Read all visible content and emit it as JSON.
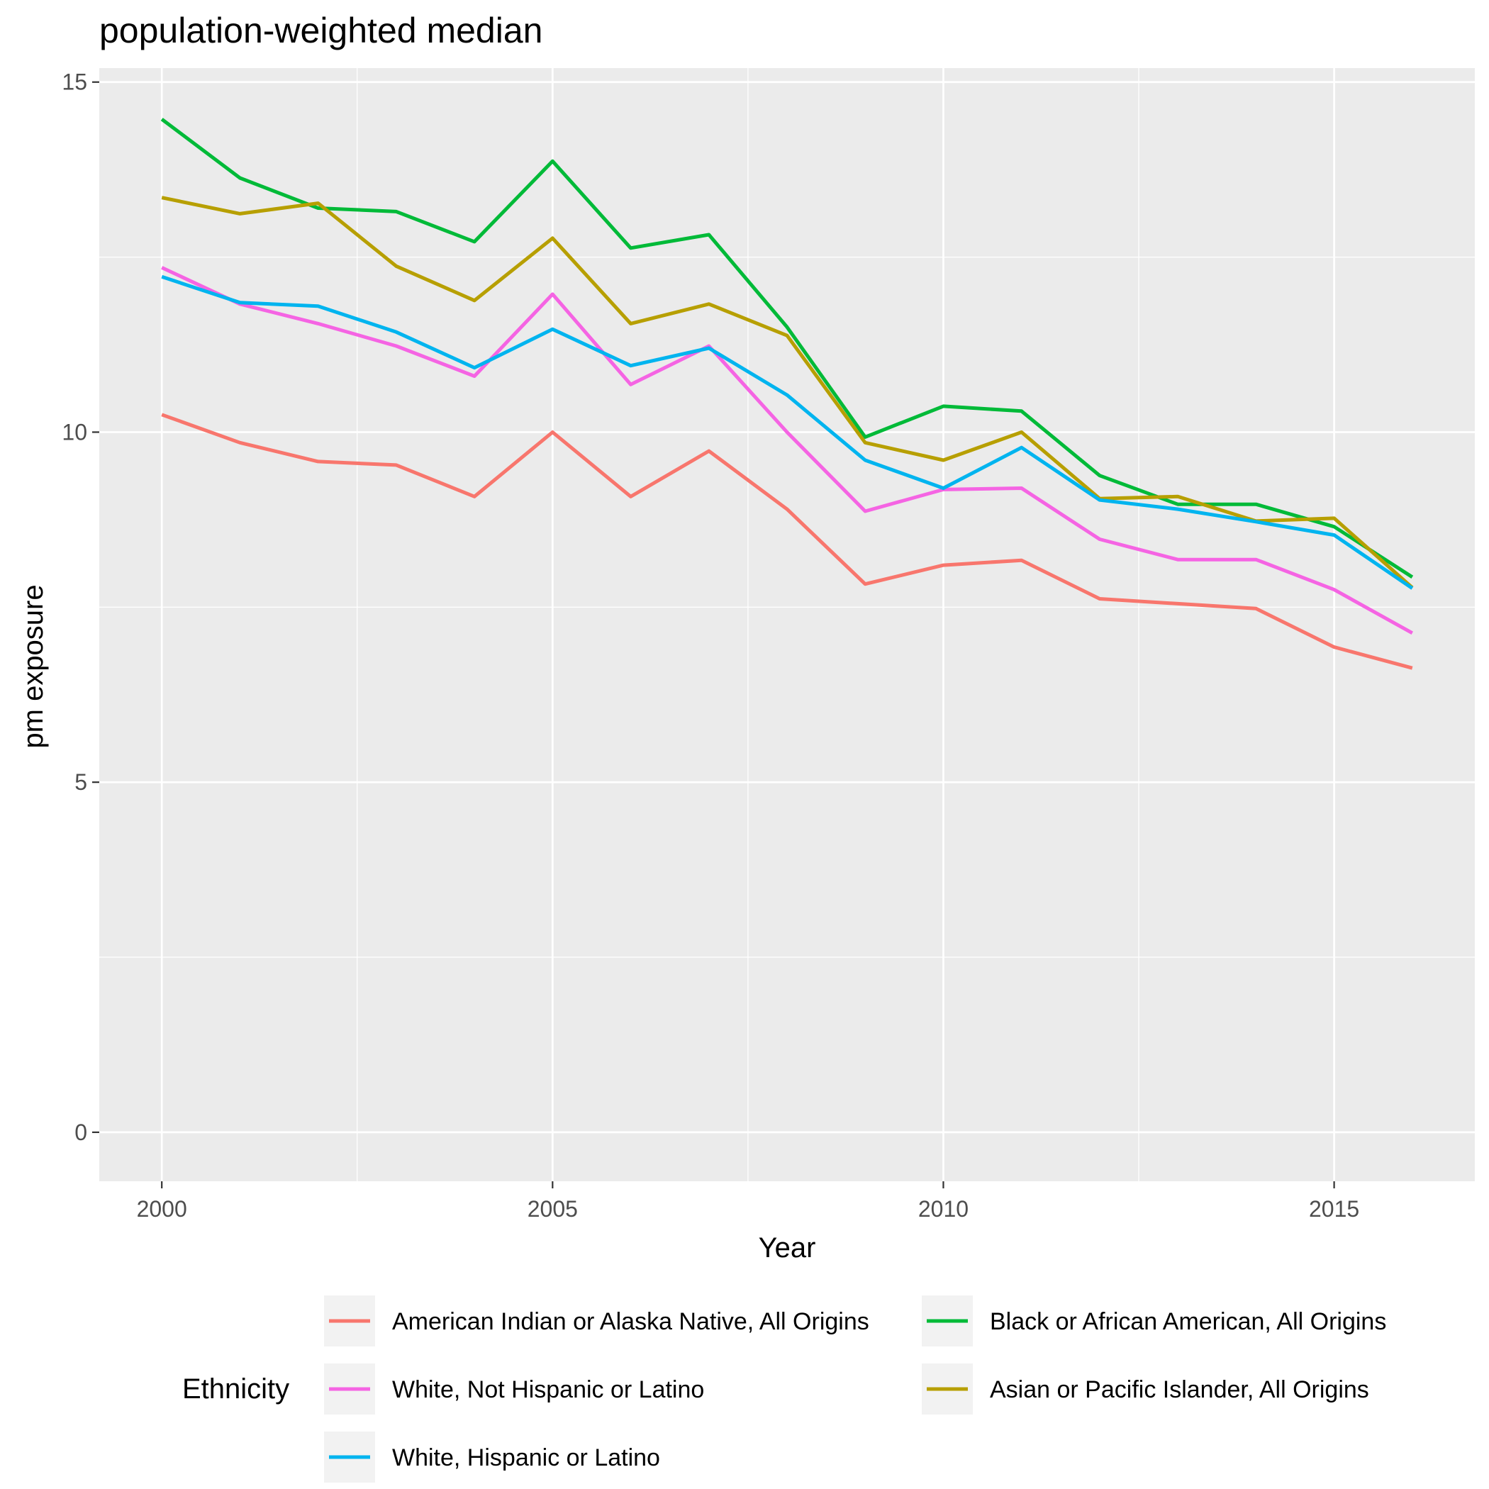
{
  "chart_data": {
    "type": "line",
    "title": "population-weighted median",
    "xlabel": "Year",
    "ylabel": "pm exposure",
    "xlim": [
      1999.2,
      2016.8
    ],
    "ylim": [
      -0.7,
      15.2
    ],
    "x_ticks": [
      2000,
      2005,
      2010,
      2015
    ],
    "y_ticks": [
      0,
      5,
      10,
      15
    ],
    "grid": true,
    "legend_title": "Ethnicity",
    "legend_position": "bottom",
    "x": [
      2000,
      2001,
      2002,
      2003,
      2004,
      2005,
      2006,
      2007,
      2008,
      2009,
      2010,
      2011,
      2012,
      2013,
      2014,
      2015,
      2016
    ],
    "series": [
      {
        "name": "American Indian or Alaska Native, All Origins",
        "color": "#F8766D",
        "values": [
          10.25,
          9.85,
          9.58,
          9.53,
          9.08,
          10.0,
          9.08,
          9.73,
          8.9,
          7.83,
          8.1,
          8.17,
          7.62,
          7.55,
          7.48,
          6.93,
          6.63
        ]
      },
      {
        "name": "Black or African American, All Origins",
        "color": "#00BA38",
        "values": [
          14.47,
          13.63,
          13.2,
          13.15,
          12.72,
          13.87,
          12.63,
          12.82,
          11.5,
          9.93,
          10.37,
          10.3,
          9.38,
          8.97,
          8.97,
          8.65,
          7.93
        ]
      },
      {
        "name": "White, Not Hispanic or Latino",
        "color": "#F564E3",
        "values": [
          12.35,
          11.83,
          11.55,
          11.23,
          10.8,
          11.97,
          10.68,
          11.23,
          10.0,
          8.87,
          9.18,
          9.2,
          8.47,
          8.18,
          8.18,
          7.75,
          7.13
        ]
      },
      {
        "name": "Asian or Pacific Islander, All Origins",
        "color": "#B79F00",
        "values": [
          13.35,
          13.12,
          13.27,
          12.37,
          11.88,
          12.77,
          11.55,
          11.83,
          11.38,
          9.85,
          9.6,
          10.0,
          9.05,
          9.08,
          8.73,
          8.77,
          7.78
        ]
      },
      {
        "name": "White, Hispanic or Latino",
        "color": "#00B4EF",
        "values": [
          12.22,
          11.85,
          11.8,
          11.43,
          10.92,
          11.47,
          10.95,
          11.2,
          10.53,
          9.6,
          9.2,
          9.78,
          9.03,
          8.9,
          8.72,
          8.53,
          7.77
        ]
      }
    ]
  }
}
